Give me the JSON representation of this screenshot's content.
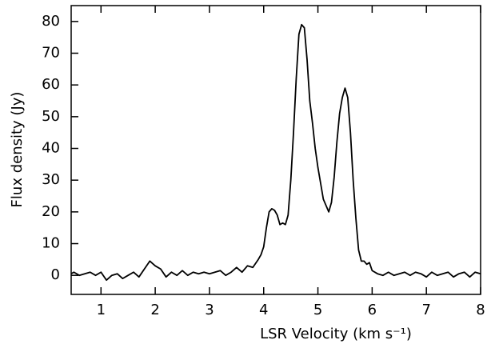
{
  "chart_data": {
    "type": "line",
    "x_label": "LSR Velocity (km s⁻¹)",
    "y_label": "Flux density (Jy)",
    "xlim": [
      0.45,
      8
    ],
    "ylim": [
      -6,
      85
    ],
    "xticks": [
      1,
      2,
      3,
      4,
      5,
      6,
      7,
      8
    ],
    "yticks": [
      0,
      10,
      20,
      30,
      40,
      50,
      60,
      70,
      80
    ],
    "grid": false,
    "x": [
      0.45,
      0.5,
      0.6,
      0.7,
      0.8,
      0.9,
      1.0,
      1.1,
      1.2,
      1.3,
      1.4,
      1.5,
      1.6,
      1.7,
      1.8,
      1.9,
      2.0,
      2.1,
      2.2,
      2.3,
      2.4,
      2.5,
      2.6,
      2.7,
      2.8,
      2.9,
      3.0,
      3.1,
      3.2,
      3.3,
      3.4,
      3.5,
      3.6,
      3.7,
      3.8,
      3.9,
      3.95,
      4.0,
      4.05,
      4.1,
      4.15,
      4.2,
      4.25,
      4.3,
      4.35,
      4.4,
      4.45,
      4.5,
      4.55,
      4.6,
      4.65,
      4.7,
      4.75,
      4.8,
      4.85,
      4.9,
      4.95,
      5.0,
      5.05,
      5.1,
      5.15,
      5.2,
      5.25,
      5.3,
      5.35,
      5.4,
      5.45,
      5.5,
      5.55,
      5.6,
      5.65,
      5.7,
      5.75,
      5.8,
      5.85,
      5.9,
      5.95,
      6.0,
      6.1,
      6.2,
      6.3,
      6.4,
      6.5,
      6.6,
      6.7,
      6.8,
      6.9,
      7.0,
      7.1,
      7.2,
      7.3,
      7.4,
      7.5,
      7.6,
      7.7,
      7.8,
      7.9,
      8.0
    ],
    "series": [
      {
        "color": "#000000",
        "values": [
          0.5,
          1,
          0,
          0.5,
          1,
          0,
          1,
          -1.5,
          0,
          0.5,
          -1,
          0,
          1,
          -0.5,
          2,
          4.5,
          3,
          2,
          -0.5,
          1,
          0,
          1.5,
          0,
          1,
          0.5,
          1,
          0.5,
          1,
          1.5,
          0,
          1,
          2.5,
          1,
          3,
          2.5,
          5,
          6.5,
          9,
          15,
          20,
          21,
          20.5,
          19,
          16,
          16.5,
          16,
          19,
          30,
          45,
          62,
          76,
          79,
          78,
          68,
          55,
          48,
          40,
          34,
          29,
          24,
          22,
          20,
          23,
          31,
          42,
          51,
          56,
          59,
          56,
          45,
          30,
          18,
          8,
          4.5,
          4.5,
          3.5,
          4,
          1.5,
          0.5,
          0,
          1,
          0,
          0.5,
          1,
          0,
          1,
          0.5,
          -0.5,
          1,
          0,
          0.5,
          1,
          -0.5,
          0.5,
          1,
          -0.5,
          1,
          0.5
        ]
      }
    ]
  }
}
